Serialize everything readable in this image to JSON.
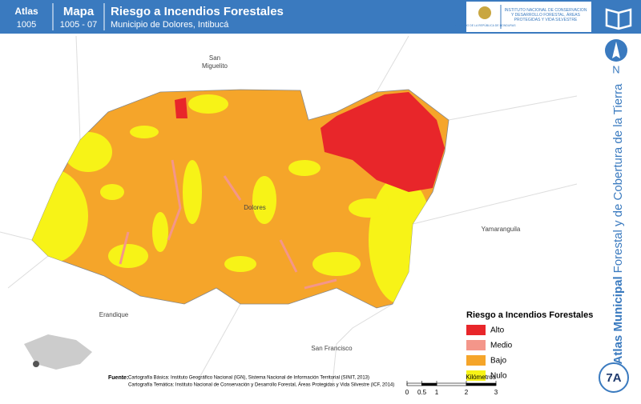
{
  "header": {
    "atlas_label": "Atlas",
    "atlas_number": "1005",
    "map_label": "Mapa",
    "map_number": "1005 - 07",
    "title": "Riesgo a Incendios Forestales",
    "subtitle": "Municipio de Dolores, Intibucá",
    "logo_left": "GOBIERNO DE LA REPÚBLICA DE HONDURAS",
    "logo_right": "INSTITUTO NACIONAL DE CONSERVACIÓN Y DESARROLLO FORESTAL, ÁREAS PROTEGIDAS Y VIDA SILVESTRE"
  },
  "north": "N",
  "side_title": {
    "bold": "Atlas Municipal",
    "rest": "Forestal y de Cobertura de la Tierra"
  },
  "badge": "7A",
  "places": [
    "San Miguelito",
    "Dolores",
    "Yamaranguila",
    "Erandique",
    "San Francisco"
  ],
  "legend": {
    "title": "Riesgo a Incendios Forestales",
    "items": [
      {
        "label": "Alto",
        "color": "#e8262a"
      },
      {
        "label": "Medio",
        "color": "#f4968a"
      },
      {
        "label": "Bajo",
        "color": "#f5a52a"
      },
      {
        "label": "Nulo",
        "color": "#f7f317"
      }
    ]
  },
  "scale": {
    "ticks": [
      0,
      0.5,
      1,
      2,
      3
    ],
    "unit": "Kilómetros"
  },
  "sources": {
    "label": "Fuente:",
    "lines": [
      "Cartografía Básica: Instituto Geográfico Nacional (IGN), Sistema Nacional de Información Territorial (SINIT, 2013)",
      "Cartografía Temática: Instituto Nacional de Conservación y Desarrollo Forestal, Áreas Protegidas y Vida Silvestre (ICF, 2014)"
    ]
  }
}
